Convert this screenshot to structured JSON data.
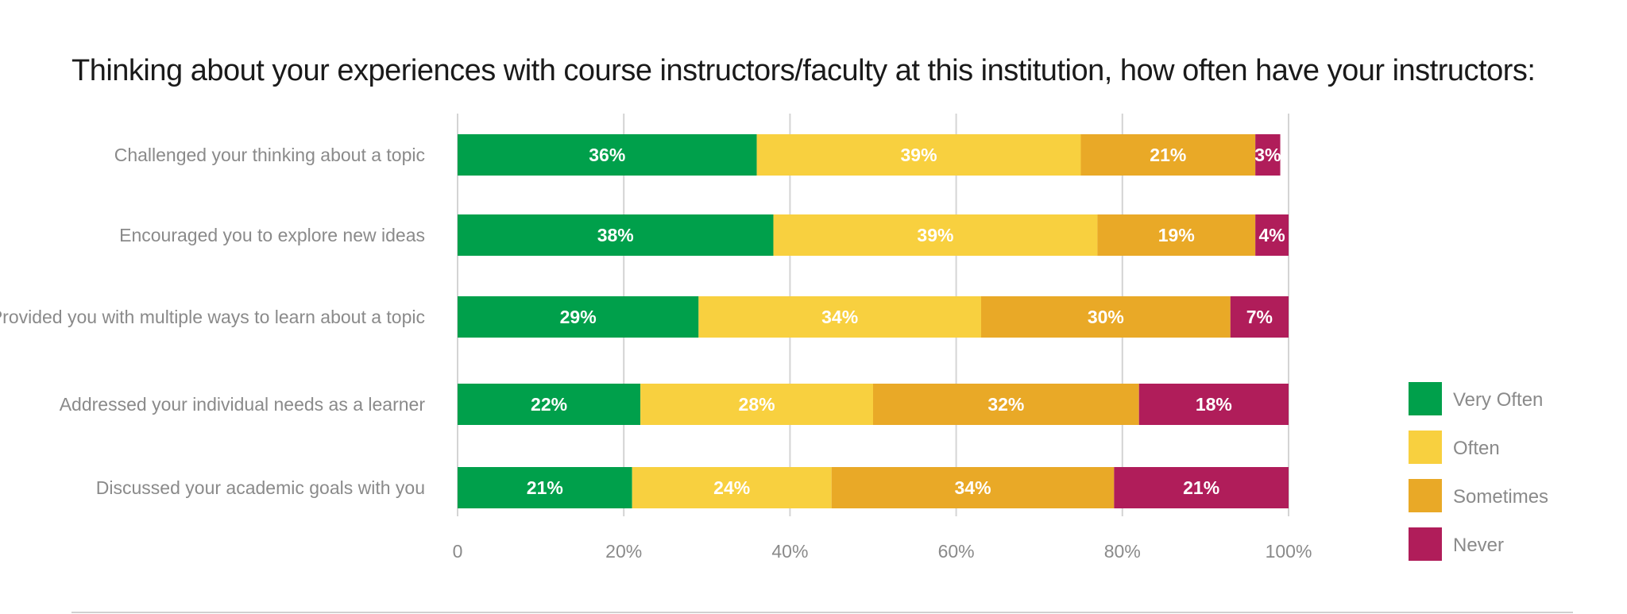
{
  "title": "Thinking about your experiences with course instructors/faculty at this institution, how often have your instructors:",
  "chart_data": {
    "type": "bar",
    "orientation": "horizontal",
    "stacked": true,
    "categories": [
      "Challenged your thinking about a topic",
      "Encouraged you to explore new ideas",
      "Provided you with multiple ways to learn about a topic",
      "Addressed your individual needs as a learner",
      "Discussed your academic goals with you"
    ],
    "series": [
      {
        "name": "Very Often",
        "color": "#00A04B",
        "values": [
          36,
          38,
          29,
          22,
          21
        ]
      },
      {
        "name": "Often",
        "color": "#F8D03F",
        "values": [
          39,
          39,
          34,
          28,
          24
        ]
      },
      {
        "name": "Sometimes",
        "color": "#E9A927",
        "values": [
          21,
          19,
          30,
          32,
          34
        ]
      },
      {
        "name": "Never",
        "color": "#B01D5A",
        "values": [
          3,
          4,
          7,
          18,
          21
        ]
      }
    ],
    "xlim": [
      0,
      100
    ],
    "xticks": [
      "0",
      "20%",
      "40%",
      "60%",
      "80%",
      "100%"
    ],
    "value_suffix": "%",
    "grid": true,
    "legend_position": "right"
  }
}
